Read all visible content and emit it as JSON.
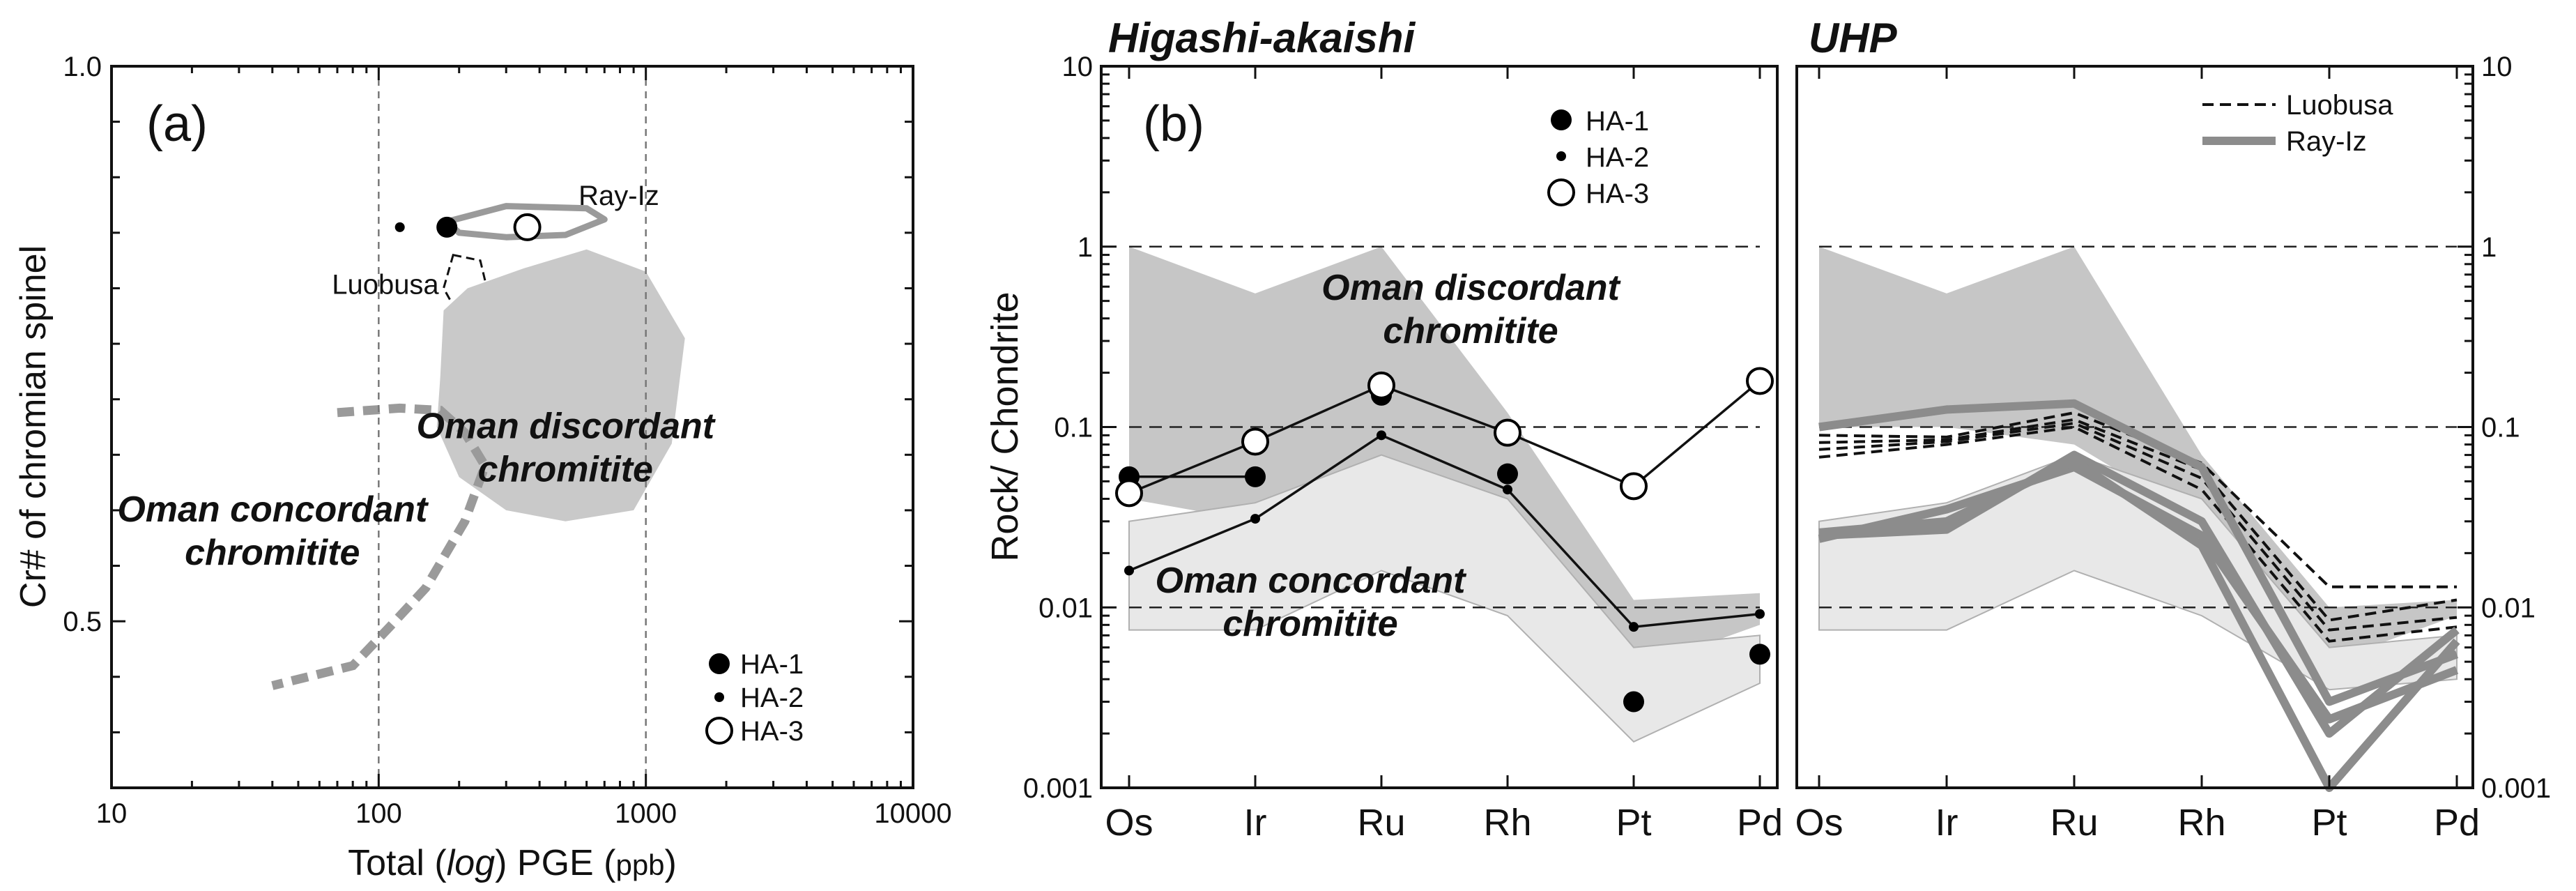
{
  "chart_data": [
    {
      "panel": "(a)",
      "type": "scatter",
      "xlabel_parts": [
        "Total (",
        "log",
        ") PGE (",
        "ppb",
        ")"
      ],
      "ylabel": "Cr# of chromian spinel",
      "x_scale": "log",
      "xlim": [
        10,
        10000
      ],
      "ylim": [
        0.35,
        1.0
      ],
      "x_ticks": [
        "10",
        "100",
        "1000",
        "10000"
      ],
      "y_ticks": [
        "1.0",
        "0.5"
      ],
      "reference_lines_x": [
        100,
        1000
      ],
      "points": [
        {
          "name": "HA-1",
          "x": 180,
          "y": 0.855,
          "marker": "large-filled"
        },
        {
          "name": "HA-2",
          "x": 120,
          "y": 0.855,
          "marker": "small-filled"
        },
        {
          "name": "HA-3",
          "x": 360,
          "y": 0.855,
          "marker": "open"
        }
      ],
      "fields": [
        {
          "name": "Ray-Iz",
          "label": "Ray-Iz",
          "style": "gray outline",
          "outline": [
            [
              180,
              0.86
            ],
            [
              300,
              0.874
            ],
            [
              600,
              0.872
            ],
            [
              700,
              0.862
            ],
            [
              500,
              0.848
            ],
            [
              300,
              0.846
            ],
            [
              200,
              0.85
            ]
          ]
        },
        {
          "name": "Luobusa",
          "label": "Luobusa",
          "style": "dashed black outline",
          "outline": [
            [
              190,
              0.83
            ],
            [
              240,
              0.825
            ],
            [
              260,
              0.79
            ],
            [
              240,
              0.77
            ],
            [
              200,
              0.775
            ],
            [
              175,
              0.8
            ]
          ]
        },
        {
          "name": "Oman discordant chromitite",
          "label_lines": [
            "Oman discordant",
            "chromitite"
          ],
          "style": "gray filled",
          "outline": [
            [
              170,
              0.72
            ],
            [
              175,
              0.78
            ],
            [
              215,
              0.8
            ],
            [
              350,
              0.818
            ],
            [
              600,
              0.835
            ],
            [
              1000,
              0.815
            ],
            [
              1400,
              0.755
            ],
            [
              1250,
              0.66
            ],
            [
              900,
              0.6
            ],
            [
              500,
              0.59
            ],
            [
              300,
              0.6
            ],
            [
              200,
              0.63
            ],
            [
              165,
              0.675
            ]
          ]
        },
        {
          "name": "Oman concordant chromitite",
          "label_lines": [
            "Oman concordant",
            "chromitite"
          ],
          "style": "thick gray dashed line",
          "outline": [
            [
              70,
              0.688
            ],
            [
              120,
              0.692
            ],
            [
              170,
              0.69
            ],
            [
              210,
              0.67
            ],
            [
              250,
              0.64
            ],
            [
              210,
              0.59
            ],
            [
              150,
              0.53
            ],
            [
              110,
              0.495
            ],
            [
              80,
              0.46
            ],
            [
              40,
              0.442
            ]
          ]
        }
      ],
      "legend": [
        {
          "name": "HA-1",
          "marker": "large-filled"
        },
        {
          "name": "HA-2",
          "marker": "small-filled"
        },
        {
          "name": "HA-3",
          "marker": "open"
        }
      ]
    },
    {
      "panel": "(b)",
      "title": "Higashi-akaishi",
      "type": "line",
      "ylabel": "Rock/ Chondrite",
      "y_scale": "log",
      "ylim": [
        0.001,
        10
      ],
      "y_ticks": [
        "10",
        "1",
        "0.1",
        "0.01",
        "0.001"
      ],
      "categories": [
        "Os",
        "Ir",
        "Ru",
        "Rh",
        "Pt",
        "Pd"
      ],
      "series": [
        {
          "name": "HA-1",
          "marker": "large-filled",
          "values": [
            0.053,
            0.053,
            0.15,
            0.055,
            0.003,
            0.0055
          ],
          "line_values": [
            0.053,
            0.053,
            null,
            null,
            null,
            null
          ]
        },
        {
          "name": "HA-2",
          "marker": "small-filled",
          "values": [
            0.016,
            0.031,
            0.09,
            0.045,
            0.0078,
            0.0092
          ]
        },
        {
          "name": "HA-3",
          "marker": "open",
          "values": [
            0.043,
            0.083,
            0.17,
            0.093,
            0.047,
            0.18
          ]
        }
      ],
      "fields": [
        {
          "name": "Oman discordant chromitite",
          "label_lines": [
            "Oman discordant",
            "chromitite"
          ],
          "style": "dark gray filled",
          "upper": [
            1.0,
            0.55,
            1.0,
            0.12,
            0.011,
            0.012
          ],
          "lower": [
            0.04,
            0.03,
            0.06,
            0.035,
            0.0045,
            0.008
          ]
        },
        {
          "name": "Oman concordant chromitite",
          "label_lines": [
            "Oman concordant",
            "chromitite"
          ],
          "style": "light gray filled",
          "upper": [
            0.03,
            0.038,
            0.07,
            0.04,
            0.006,
            0.007
          ],
          "lower": [
            0.0075,
            0.0075,
            0.016,
            0.009,
            0.0018,
            0.0038
          ]
        }
      ],
      "legend": [
        {
          "name": "HA-1",
          "marker": "large-filled"
        },
        {
          "name": "HA-2",
          "marker": "small-filled"
        },
        {
          "name": "HA-3",
          "marker": "open"
        }
      ]
    },
    {
      "panel": "UHP",
      "title": "UHP",
      "type": "line",
      "y_scale": "log",
      "ylim": [
        0.001,
        10
      ],
      "y_ticks": [
        "10",
        "1",
        "0.1",
        "0.01",
        "0.001"
      ],
      "categories": [
        "Os",
        "Ir",
        "Ru",
        "Rh",
        "Pt",
        "Pd"
      ],
      "series": [
        {
          "name": "Luobusa",
          "style": "dashed black",
          "values": [
            0.09,
            0.088,
            0.12,
            0.063,
            0.013,
            0.013
          ]
        },
        {
          "name": "Luobusa",
          "style": "dashed black",
          "values": [
            0.082,
            0.085,
            0.11,
            0.058,
            0.0085,
            0.011
          ]
        },
        {
          "name": "Luobusa",
          "style": "dashed black",
          "values": [
            0.075,
            0.083,
            0.105,
            0.052,
            0.0075,
            0.0088
          ]
        },
        {
          "name": "Luobusa",
          "style": "dashed black",
          "values": [
            0.068,
            0.08,
            0.1,
            0.045,
            0.0065,
            0.0078
          ]
        },
        {
          "name": "Ray-Iz",
          "style": "thick gray",
          "values": [
            0.1,
            0.125,
            0.135,
            0.06,
            0.003,
            0.0055
          ]
        },
        {
          "name": "Ray-Iz",
          "style": "thick gray",
          "values": [
            0.025,
            0.027,
            0.07,
            0.03,
            0.002,
            0.0075
          ]
        },
        {
          "name": "Ray-Iz",
          "style": "thick gray",
          "values": [
            0.024,
            0.035,
            0.06,
            0.025,
            0.0024,
            0.0045
          ]
        },
        {
          "name": "Ray-Iz",
          "style": "thick gray",
          "values": [
            0.026,
            0.03,
            0.065,
            0.022,
            0.001,
            0.0065
          ]
        }
      ],
      "fields": [
        {
          "name": "Oman discordant chromitite",
          "style": "dark gray filled",
          "upper": [
            1.0,
            0.55,
            1.0,
            0.07,
            0.01,
            0.011
          ],
          "lower": [
            0.1,
            0.1,
            0.08,
            0.03,
            0.005,
            0.009
          ]
        },
        {
          "name": "Oman concordant chromitite",
          "style": "light gray filled",
          "upper": [
            0.03,
            0.038,
            0.07,
            0.04,
            0.006,
            0.007
          ],
          "lower": [
            0.0075,
            0.0075,
            0.016,
            0.009,
            0.0035,
            0.004
          ]
        }
      ],
      "legend": [
        {
          "name": "Luobusa",
          "style": "dashed black"
        },
        {
          "name": "Ray-Iz",
          "style": "thick gray"
        }
      ]
    }
  ]
}
